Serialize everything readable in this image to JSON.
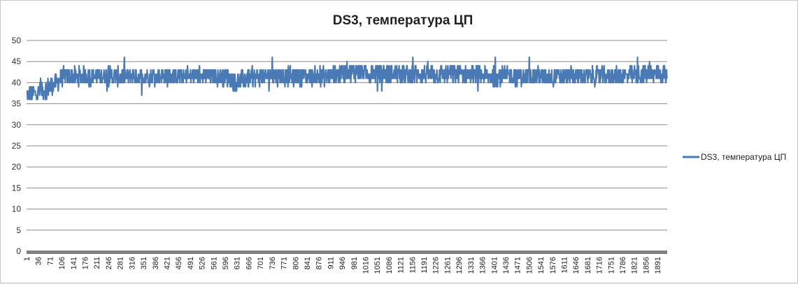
{
  "chart_data": {
    "type": "line",
    "title": "DS3, температура ЦП",
    "xlabel": "",
    "ylabel": "",
    "ylim": [
      0,
      50
    ],
    "yticks": [
      0,
      5,
      10,
      15,
      20,
      25,
      30,
      35,
      40,
      45,
      50
    ],
    "xlim": [
      1,
      1920
    ],
    "xticks": [
      1,
      36,
      71,
      106,
      141,
      176,
      211,
      246,
      281,
      316,
      351,
      386,
      421,
      456,
      491,
      526,
      561,
      596,
      631,
      666,
      701,
      736,
      771,
      806,
      841,
      876,
      911,
      946,
      981,
      1016,
      1051,
      1086,
      1121,
      1156,
      1191,
      1226,
      1261,
      1296,
      1331,
      1366,
      1401,
      1436,
      1471,
      1506,
      1541,
      1576,
      1611,
      1646,
      1681,
      1716,
      1751,
      1786,
      1821,
      1856,
      1891
    ],
    "grid": true,
    "legend_position": "right",
    "series": [
      {
        "name": "DS3, температура ЦП",
        "color": "#4a7ab5",
        "profile": {
          "x": [
            1,
            30,
            60,
            90,
            110,
            200,
            300,
            500,
            600,
            630,
            660,
            700,
            900,
            960,
            1000,
            1100,
            1300,
            1400,
            1600,
            1800,
            1860,
            1920
          ],
          "y": [
            37,
            37.5,
            38.5,
            40,
            41.5,
            41.5,
            41.5,
            41.5,
            41.5,
            40,
            41,
            41.5,
            41.5,
            42.5,
            42.5,
            42,
            42,
            41.5,
            41.5,
            41.5,
            42,
            42
          ]
        },
        "range": [
          36,
          46
        ]
      }
    ]
  }
}
